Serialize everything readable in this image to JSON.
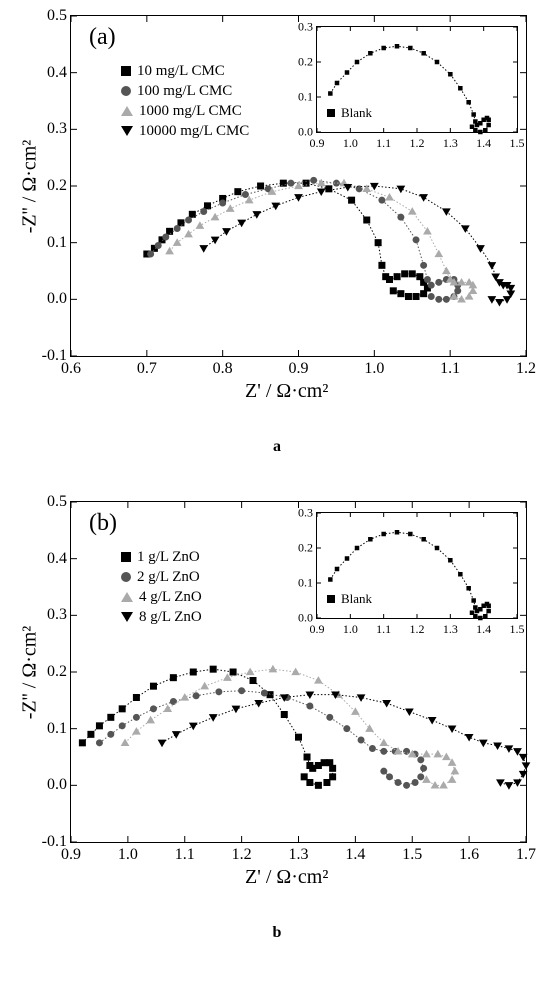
{
  "panel_a": {
    "tag": "(a)",
    "caption": "a",
    "type": "scatter",
    "xlabel": "Z' / Ω·cm²",
    "ylabel": "-Z'' / Ω·cm²",
    "label_fontsize": 20,
    "tick_fontsize": 16,
    "xlim": [
      0.6,
      1.2
    ],
    "ylim": [
      -0.1,
      0.5
    ],
    "xticks": [
      0.6,
      0.7,
      0.8,
      0.9,
      1.0,
      1.1,
      1.2
    ],
    "yticks": [
      -0.1,
      0.0,
      0.1,
      0.2,
      0.3,
      0.4,
      0.5
    ],
    "background_color": "#ffffff",
    "border_color": "#000000",
    "line_style": "dotted",
    "series": [
      {
        "label": "10 mg/L CMC",
        "marker": "square",
        "color": "#000000",
        "points": [
          [
            0.7,
            0.08
          ],
          [
            0.71,
            0.09
          ],
          [
            0.72,
            0.105
          ],
          [
            0.73,
            0.12
          ],
          [
            0.745,
            0.135
          ],
          [
            0.76,
            0.15
          ],
          [
            0.78,
            0.165
          ],
          [
            0.8,
            0.178
          ],
          [
            0.82,
            0.19
          ],
          [
            0.85,
            0.2
          ],
          [
            0.88,
            0.205
          ],
          [
            0.91,
            0.205
          ],
          [
            0.94,
            0.195
          ],
          [
            0.97,
            0.175
          ],
          [
            0.99,
            0.14
          ],
          [
            1.005,
            0.1
          ],
          [
            1.01,
            0.06
          ],
          [
            1.015,
            0.04
          ],
          [
            1.02,
            0.035
          ],
          [
            1.03,
            0.04
          ],
          [
            1.04,
            0.045
          ],
          [
            1.05,
            0.045
          ],
          [
            1.06,
            0.04
          ],
          [
            1.065,
            0.03
          ],
          [
            1.07,
            0.02
          ],
          [
            1.065,
            0.01
          ],
          [
            1.055,
            0.005
          ],
          [
            1.045,
            0.005
          ],
          [
            1.035,
            0.01
          ],
          [
            1.025,
            0.015
          ]
        ]
      },
      {
        "label": "100 mg/L CMC",
        "marker": "circle",
        "color": "#555555",
        "points": [
          [
            0.705,
            0.08
          ],
          [
            0.715,
            0.095
          ],
          [
            0.725,
            0.11
          ],
          [
            0.74,
            0.125
          ],
          [
            0.755,
            0.14
          ],
          [
            0.775,
            0.155
          ],
          [
            0.8,
            0.17
          ],
          [
            0.83,
            0.185
          ],
          [
            0.86,
            0.195
          ],
          [
            0.89,
            0.205
          ],
          [
            0.92,
            0.21
          ],
          [
            0.95,
            0.205
          ],
          [
            0.98,
            0.195
          ],
          [
            1.01,
            0.175
          ],
          [
            1.035,
            0.145
          ],
          [
            1.055,
            0.105
          ],
          [
            1.065,
            0.06
          ],
          [
            1.07,
            0.035
          ],
          [
            1.075,
            0.025
          ],
          [
            1.085,
            0.03
          ],
          [
            1.095,
            0.035
          ],
          [
            1.105,
            0.035
          ],
          [
            1.11,
            0.025
          ],
          [
            1.11,
            0.015
          ],
          [
            1.105,
            0.005
          ],
          [
            1.095,
            0.0
          ],
          [
            1.085,
            0.0
          ],
          [
            1.075,
            0.005
          ]
        ]
      },
      {
        "label": "1000 mg/L CMC",
        "marker": "tri-up",
        "color": "#aaaaaa",
        "points": [
          [
            0.73,
            0.085
          ],
          [
            0.74,
            0.1
          ],
          [
            0.755,
            0.115
          ],
          [
            0.77,
            0.13
          ],
          [
            0.79,
            0.145
          ],
          [
            0.81,
            0.16
          ],
          [
            0.835,
            0.175
          ],
          [
            0.865,
            0.19
          ],
          [
            0.9,
            0.2
          ],
          [
            0.93,
            0.205
          ],
          [
            0.96,
            0.205
          ],
          [
            0.99,
            0.195
          ],
          [
            1.02,
            0.18
          ],
          [
            1.05,
            0.155
          ],
          [
            1.07,
            0.12
          ],
          [
            1.085,
            0.08
          ],
          [
            1.095,
            0.05
          ],
          [
            1.1,
            0.035
          ],
          [
            1.105,
            0.03
          ],
          [
            1.115,
            0.03
          ],
          [
            1.125,
            0.03
          ],
          [
            1.13,
            0.025
          ],
          [
            1.13,
            0.015
          ],
          [
            1.125,
            0.005
          ],
          [
            1.115,
            0.0
          ],
          [
            1.105,
            0.005
          ]
        ]
      },
      {
        "label": "10000 mg/L CMC",
        "marker": "tri-down",
        "color": "#000000",
        "points": [
          [
            0.775,
            0.09
          ],
          [
            0.79,
            0.105
          ],
          [
            0.805,
            0.12
          ],
          [
            0.825,
            0.135
          ],
          [
            0.845,
            0.15
          ],
          [
            0.87,
            0.165
          ],
          [
            0.9,
            0.18
          ],
          [
            0.93,
            0.19
          ],
          [
            0.965,
            0.198
          ],
          [
            1.0,
            0.2
          ],
          [
            1.035,
            0.195
          ],
          [
            1.065,
            0.18
          ],
          [
            1.095,
            0.155
          ],
          [
            1.12,
            0.125
          ],
          [
            1.14,
            0.09
          ],
          [
            1.155,
            0.06
          ],
          [
            1.16,
            0.04
          ],
          [
            1.165,
            0.03
          ],
          [
            1.17,
            0.025
          ],
          [
            1.175,
            0.025
          ],
          [
            1.18,
            0.02
          ],
          [
            1.18,
            0.01
          ],
          [
            1.175,
            0.0
          ],
          [
            1.165,
            -0.005
          ],
          [
            1.155,
            0.0
          ]
        ]
      }
    ],
    "inset": {
      "xlim": [
        0.9,
        1.5
      ],
      "ylim": [
        0.0,
        0.3
      ],
      "xticks": [
        0.9,
        1.0,
        1.1,
        1.2,
        1.3,
        1.4,
        1.5
      ],
      "yticks": [
        0.0,
        0.1,
        0.2,
        0.3
      ],
      "legend_label": "Blank",
      "marker": "square",
      "color": "#000000",
      "points": [
        [
          0.94,
          0.11
        ],
        [
          0.96,
          0.14
        ],
        [
          0.99,
          0.17
        ],
        [
          1.02,
          0.2
        ],
        [
          1.06,
          0.225
        ],
        [
          1.1,
          0.24
        ],
        [
          1.14,
          0.245
        ],
        [
          1.18,
          0.24
        ],
        [
          1.22,
          0.225
        ],
        [
          1.26,
          0.2
        ],
        [
          1.3,
          0.165
        ],
        [
          1.33,
          0.125
        ],
        [
          1.355,
          0.085
        ],
        [
          1.37,
          0.05
        ],
        [
          1.375,
          0.03
        ],
        [
          1.38,
          0.02
        ],
        [
          1.39,
          0.025
        ],
        [
          1.4,
          0.035
        ],
        [
          1.41,
          0.04
        ],
        [
          1.415,
          0.035
        ],
        [
          1.415,
          0.02
        ],
        [
          1.405,
          0.005
        ],
        [
          1.39,
          0.0
        ],
        [
          1.375,
          0.005
        ],
        [
          1.365,
          0.015
        ]
      ]
    }
  },
  "panel_b": {
    "tag": "(b)",
    "caption": "b",
    "type": "scatter",
    "xlabel": "Z' / Ω·cm²",
    "ylabel": "-Z'' / Ω·cm²",
    "label_fontsize": 20,
    "tick_fontsize": 16,
    "xlim": [
      0.9,
      1.7
    ],
    "ylim": [
      -0.1,
      0.5
    ],
    "xticks": [
      0.9,
      1.0,
      1.1,
      1.2,
      1.3,
      1.4,
      1.5,
      1.6,
      1.7
    ],
    "yticks": [
      -0.1,
      0.0,
      0.1,
      0.2,
      0.3,
      0.4,
      0.5
    ],
    "background_color": "#ffffff",
    "border_color": "#000000",
    "line_style": "dotted",
    "series": [
      {
        "label": "1 g/L ZnO",
        "marker": "square",
        "color": "#000000",
        "points": [
          [
            0.92,
            0.075
          ],
          [
            0.935,
            0.09
          ],
          [
            0.95,
            0.105
          ],
          [
            0.97,
            0.12
          ],
          [
            0.99,
            0.135
          ],
          [
            1.015,
            0.155
          ],
          [
            1.045,
            0.175
          ],
          [
            1.08,
            0.19
          ],
          [
            1.115,
            0.2
          ],
          [
            1.15,
            0.205
          ],
          [
            1.185,
            0.2
          ],
          [
            1.22,
            0.185
          ],
          [
            1.25,
            0.16
          ],
          [
            1.275,
            0.125
          ],
          [
            1.3,
            0.085
          ],
          [
            1.315,
            0.05
          ],
          [
            1.32,
            0.035
          ],
          [
            1.325,
            0.03
          ],
          [
            1.335,
            0.035
          ],
          [
            1.345,
            0.04
          ],
          [
            1.355,
            0.04
          ],
          [
            1.36,
            0.03
          ],
          [
            1.36,
            0.015
          ],
          [
            1.35,
            0.005
          ],
          [
            1.335,
            0.0
          ],
          [
            1.32,
            0.005
          ],
          [
            1.31,
            0.015
          ]
        ]
      },
      {
        "label": "2 g/L ZnO",
        "marker": "circle",
        "color": "#555555",
        "points": [
          [
            0.95,
            0.075
          ],
          [
            0.97,
            0.09
          ],
          [
            0.99,
            0.105
          ],
          [
            1.015,
            0.12
          ],
          [
            1.045,
            0.135
          ],
          [
            1.08,
            0.148
          ],
          [
            1.12,
            0.158
          ],
          [
            1.16,
            0.165
          ],
          [
            1.2,
            0.167
          ],
          [
            1.24,
            0.163
          ],
          [
            1.28,
            0.155
          ],
          [
            1.32,
            0.14
          ],
          [
            1.355,
            0.12
          ],
          [
            1.385,
            0.1
          ],
          [
            1.41,
            0.08
          ],
          [
            1.43,
            0.065
          ],
          [
            1.45,
            0.06
          ],
          [
            1.47,
            0.06
          ],
          [
            1.49,
            0.06
          ],
          [
            1.505,
            0.055
          ],
          [
            1.515,
            0.045
          ],
          [
            1.52,
            0.03
          ],
          [
            1.515,
            0.015
          ],
          [
            1.505,
            0.005
          ],
          [
            1.49,
            0.0
          ],
          [
            1.475,
            0.005
          ],
          [
            1.46,
            0.015
          ],
          [
            1.45,
            0.025
          ]
        ]
      },
      {
        "label": "4 g/L ZnO",
        "marker": "tri-up",
        "color": "#aaaaaa",
        "points": [
          [
            0.995,
            0.075
          ],
          [
            1.015,
            0.095
          ],
          [
            1.04,
            0.115
          ],
          [
            1.07,
            0.135
          ],
          [
            1.1,
            0.155
          ],
          [
            1.135,
            0.175
          ],
          [
            1.175,
            0.19
          ],
          [
            1.215,
            0.2
          ],
          [
            1.255,
            0.205
          ],
          [
            1.295,
            0.2
          ],
          [
            1.335,
            0.185
          ],
          [
            1.37,
            0.16
          ],
          [
            1.4,
            0.13
          ],
          [
            1.425,
            0.1
          ],
          [
            1.45,
            0.075
          ],
          [
            1.475,
            0.06
          ],
          [
            1.5,
            0.055
          ],
          [
            1.525,
            0.055
          ],
          [
            1.545,
            0.055
          ],
          [
            1.56,
            0.05
          ],
          [
            1.57,
            0.04
          ],
          [
            1.575,
            0.025
          ],
          [
            1.57,
            0.01
          ],
          [
            1.555,
            0.0
          ],
          [
            1.54,
            0.0
          ],
          [
            1.525,
            0.01
          ]
        ]
      },
      {
        "label": "8 g/L ZnO",
        "marker": "tri-down",
        "color": "#000000",
        "points": [
          [
            1.06,
            0.075
          ],
          [
            1.085,
            0.09
          ],
          [
            1.115,
            0.105
          ],
          [
            1.15,
            0.12
          ],
          [
            1.19,
            0.135
          ],
          [
            1.23,
            0.145
          ],
          [
            1.275,
            0.155
          ],
          [
            1.32,
            0.16
          ],
          [
            1.365,
            0.16
          ],
          [
            1.41,
            0.155
          ],
          [
            1.455,
            0.145
          ],
          [
            1.495,
            0.13
          ],
          [
            1.535,
            0.115
          ],
          [
            1.57,
            0.1
          ],
          [
            1.6,
            0.085
          ],
          [
            1.625,
            0.075
          ],
          [
            1.65,
            0.07
          ],
          [
            1.67,
            0.065
          ],
          [
            1.685,
            0.06
          ],
          [
            1.695,
            0.05
          ],
          [
            1.7,
            0.035
          ],
          [
            1.695,
            0.02
          ],
          [
            1.685,
            0.005
          ],
          [
            1.67,
            0.0
          ],
          [
            1.655,
            0.005
          ]
        ]
      }
    ],
    "inset": {
      "xlim": [
        0.9,
        1.5
      ],
      "ylim": [
        0.0,
        0.3
      ],
      "xticks": [
        0.9,
        1.0,
        1.1,
        1.2,
        1.3,
        1.4,
        1.5
      ],
      "yticks": [
        0.0,
        0.1,
        0.2,
        0.3
      ],
      "legend_label": "Blank",
      "marker": "square",
      "color": "#000000",
      "points": [
        [
          0.94,
          0.11
        ],
        [
          0.96,
          0.14
        ],
        [
          0.99,
          0.17
        ],
        [
          1.02,
          0.2
        ],
        [
          1.06,
          0.225
        ],
        [
          1.1,
          0.24
        ],
        [
          1.14,
          0.245
        ],
        [
          1.18,
          0.24
        ],
        [
          1.22,
          0.225
        ],
        [
          1.26,
          0.2
        ],
        [
          1.3,
          0.165
        ],
        [
          1.33,
          0.125
        ],
        [
          1.355,
          0.085
        ],
        [
          1.37,
          0.05
        ],
        [
          1.375,
          0.03
        ],
        [
          1.38,
          0.02
        ],
        [
          1.39,
          0.025
        ],
        [
          1.4,
          0.035
        ],
        [
          1.41,
          0.04
        ],
        [
          1.415,
          0.035
        ],
        [
          1.415,
          0.02
        ],
        [
          1.405,
          0.005
        ],
        [
          1.39,
          0.0
        ],
        [
          1.375,
          0.005
        ],
        [
          1.365,
          0.015
        ]
      ]
    }
  }
}
